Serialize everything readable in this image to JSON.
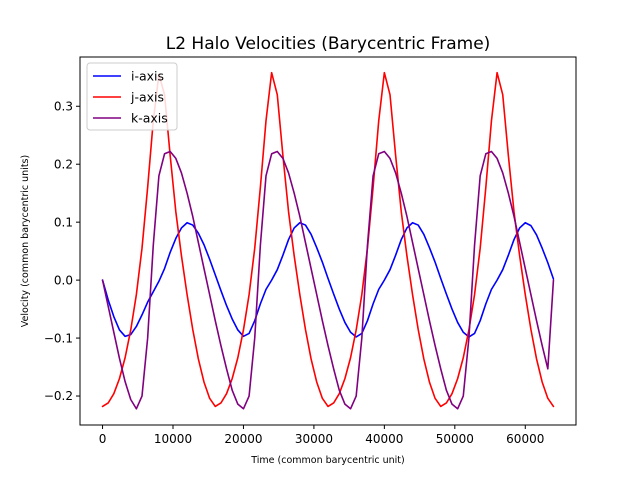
{
  "chart_data": {
    "type": "line",
    "title": "L2 Halo Velocities (Barycentric Frame)",
    "xlabel": "Time (common barycentric unit)",
    "ylabel": "Velocity (common barycentric units)",
    "xlim": [
      -3200,
      67200
    ],
    "ylim": [
      -0.25,
      0.385
    ],
    "xticks": [
      0,
      10000,
      20000,
      30000,
      40000,
      50000,
      60000
    ],
    "xtick_labels": [
      "0",
      "10000",
      "20000",
      "30000",
      "40000",
      "50000",
      "60000"
    ],
    "yticks": [
      -0.2,
      -0.1,
      0.0,
      0.1,
      0.2,
      0.3
    ],
    "ytick_labels": [
      "−0.2",
      "−0.1",
      "0.0",
      "0.1",
      "0.2",
      "0.3"
    ],
    "grid": false,
    "legend_position": "top-left",
    "series": [
      {
        "name": "i-axis",
        "color": "#0000ff",
        "x": [
          0,
          800,
          1600,
          2400,
          3200,
          4000,
          4800,
          5600,
          6400,
          7200,
          8000,
          8800,
          9600,
          10400,
          11200,
          12000,
          12800,
          13600,
          14400,
          15200,
          16000,
          16800,
          17600,
          18400,
          19200,
          20000,
          20800,
          21600,
          22400,
          23200,
          24000,
          24800,
          25600,
          26400,
          27200,
          28000,
          28800,
          29600,
          30400,
          31200,
          32000,
          32800,
          33600,
          34400,
          35200,
          36000,
          36800,
          37600,
          38400,
          39200,
          40000,
          40800,
          41600,
          42400,
          43200,
          44000,
          44800,
          45600,
          46400,
          47200,
          48000,
          48800,
          49600,
          50400,
          51200,
          52000,
          52800,
          53600,
          54400,
          55200,
          56000,
          56800,
          57600,
          58400,
          59200,
          60000,
          60800,
          61600,
          62400,
          63200,
          64000
        ],
        "y": [
          0.0,
          -0.034,
          -0.063,
          -0.086,
          -0.097,
          -0.094,
          -0.08,
          -0.06,
          -0.038,
          -0.02,
          -0.002,
          0.02,
          0.048,
          0.072,
          0.09,
          0.099,
          0.095,
          0.081,
          0.061,
          0.036,
          0.009,
          -0.018,
          -0.044,
          -0.067,
          -0.086,
          -0.097,
          -0.092,
          -0.07,
          -0.041,
          -0.016,
          0.0,
          0.018,
          0.043,
          0.07,
          0.09,
          0.099,
          0.095,
          0.079,
          0.056,
          0.031,
          0.003,
          -0.024,
          -0.05,
          -0.073,
          -0.09,
          -0.098,
          -0.092,
          -0.07,
          -0.041,
          -0.016,
          0.0,
          0.018,
          0.043,
          0.07,
          0.09,
          0.099,
          0.095,
          0.079,
          0.056,
          0.031,
          0.003,
          -0.024,
          -0.05,
          -0.073,
          -0.09,
          -0.098,
          -0.092,
          -0.07,
          -0.041,
          -0.016,
          0.0,
          0.018,
          0.043,
          0.07,
          0.09,
          0.099,
          0.094,
          0.078,
          0.055,
          0.03,
          0.002
        ]
      },
      {
        "name": "j-axis",
        "color": "#ff0000",
        "x": [
          0,
          800,
          1600,
          2400,
          3200,
          4000,
          4800,
          5600,
          6400,
          7200,
          8000,
          8800,
          9600,
          10400,
          11200,
          12000,
          12800,
          13600,
          14400,
          15200,
          16000,
          16800,
          17600,
          18400,
          19200,
          20000,
          20800,
          21600,
          22400,
          23200,
          24000,
          24800,
          25600,
          26400,
          27200,
          28000,
          28800,
          29600,
          30400,
          31200,
          32000,
          32800,
          33600,
          34400,
          35200,
          36000,
          36800,
          37600,
          38400,
          39200,
          40000,
          40800,
          41600,
          42400,
          43200,
          44000,
          44800,
          45600,
          46400,
          47200,
          48000,
          48800,
          49600,
          50400,
          51200,
          52000,
          52800,
          53600,
          54400,
          55200,
          56000,
          56800,
          57600,
          58400,
          59200,
          60000,
          60800,
          61600,
          62400,
          63200,
          64000
        ],
        "y": [
          -0.218,
          -0.212,
          -0.196,
          -0.17,
          -0.134,
          -0.086,
          -0.025,
          0.055,
          0.16,
          0.275,
          0.355,
          0.32,
          0.215,
          0.118,
          0.042,
          -0.025,
          -0.085,
          -0.136,
          -0.176,
          -0.204,
          -0.218,
          -0.212,
          -0.196,
          -0.17,
          -0.134,
          -0.086,
          -0.025,
          0.055,
          0.16,
          0.275,
          0.358,
          0.32,
          0.215,
          0.118,
          0.042,
          -0.025,
          -0.085,
          -0.136,
          -0.176,
          -0.204,
          -0.218,
          -0.212,
          -0.196,
          -0.17,
          -0.134,
          -0.086,
          -0.025,
          0.055,
          0.16,
          0.275,
          0.358,
          0.32,
          0.215,
          0.118,
          0.042,
          -0.025,
          -0.085,
          -0.136,
          -0.176,
          -0.204,
          -0.218,
          -0.212,
          -0.196,
          -0.17,
          -0.134,
          -0.086,
          -0.025,
          0.055,
          0.16,
          0.275,
          0.358,
          0.32,
          0.215,
          0.118,
          0.042,
          -0.025,
          -0.085,
          -0.136,
          -0.176,
          -0.204,
          -0.218
        ]
      },
      {
        "name": "k-axis",
        "color": "#800080",
        "x": [
          0,
          800,
          1600,
          2400,
          3200,
          4000,
          4800,
          5600,
          6400,
          7200,
          8000,
          8800,
          9600,
          10400,
          11200,
          12000,
          12800,
          13600,
          14400,
          15200,
          16000,
          16800,
          17600,
          18400,
          19200,
          20000,
          20800,
          21600,
          22400,
          23200,
          24000,
          24800,
          25600,
          26400,
          27200,
          28000,
          28800,
          29600,
          30400,
          31200,
          32000,
          32800,
          33600,
          34400,
          35200,
          36000,
          36800,
          37600,
          38400,
          39200,
          40000,
          40800,
          41600,
          42400,
          43200,
          44000,
          44800,
          45600,
          46400,
          47200,
          48000,
          48800,
          49600,
          50400,
          51200,
          52000,
          52800,
          53600,
          54400,
          55200,
          56000,
          56800,
          57600,
          58400,
          59200,
          60000,
          60800,
          61600,
          62400,
          63200,
          64000
        ],
        "y": [
          0.0,
          -0.045,
          -0.09,
          -0.135,
          -0.175,
          -0.206,
          -0.222,
          -0.2,
          -0.1,
          0.06,
          0.18,
          0.218,
          0.222,
          0.21,
          0.185,
          0.15,
          0.11,
          0.065,
          0.02,
          -0.025,
          -0.07,
          -0.113,
          -0.153,
          -0.19,
          -0.214,
          -0.222,
          -0.2,
          -0.1,
          0.06,
          0.18,
          0.218,
          0.222,
          0.21,
          0.185,
          0.15,
          0.11,
          0.065,
          0.02,
          -0.025,
          -0.07,
          -0.113,
          -0.153,
          -0.19,
          -0.214,
          -0.222,
          -0.2,
          -0.1,
          0.06,
          0.18,
          0.218,
          0.222,
          0.21,
          0.185,
          0.15,
          0.11,
          0.065,
          0.02,
          -0.025,
          -0.07,
          -0.113,
          -0.153,
          -0.19,
          -0.214,
          -0.222,
          -0.2,
          -0.1,
          0.06,
          0.18,
          0.218,
          0.222,
          0.21,
          0.185,
          0.15,
          0.11,
          0.065,
          0.02,
          -0.025,
          -0.07,
          -0.113,
          -0.153,
          0.0
        ]
      }
    ]
  }
}
